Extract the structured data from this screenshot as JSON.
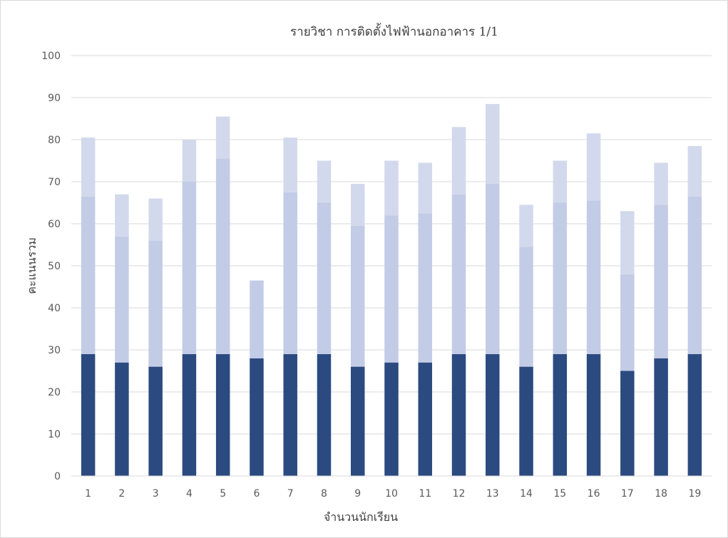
{
  "chart_data": {
    "type": "bar",
    "stacked": true,
    "title": "รายวิชา การติดตั้งไฟฟ้านอกอาคาร 1/1",
    "xlabel": "จำนวนนักเรียน",
    "ylabel": "คะแนนรวม",
    "ylim": [
      0,
      100
    ],
    "yticks": [
      0,
      10,
      20,
      30,
      40,
      50,
      60,
      70,
      80,
      90,
      100
    ],
    "grid": true,
    "legend": "none",
    "categories": [
      "1",
      "2",
      "3",
      "4",
      "5",
      "6",
      "7",
      "8",
      "9",
      "10",
      "11",
      "12",
      "13",
      "14",
      "15",
      "16",
      "17",
      "18",
      "19"
    ],
    "series": [
      {
        "color": "#2b4a80",
        "values": [
          29,
          27,
          26,
          29,
          29,
          28,
          29,
          29,
          26,
          27,
          27,
          29,
          29,
          26,
          29,
          29,
          25,
          28,
          29
        ]
      },
      {
        "color": "#c3cce6",
        "values": [
          37.5,
          30,
          30,
          41,
          46.5,
          18.5,
          38.5,
          36,
          33.5,
          35,
          35.5,
          38,
          40.5,
          28.5,
          36,
          36.5,
          23,
          36.5,
          37.5
        ]
      },
      {
        "color": "#d3d9ec",
        "values": [
          14,
          10,
          10,
          10,
          10,
          0,
          13,
          10,
          10,
          13,
          12,
          16,
          19,
          10,
          10,
          16,
          15,
          10,
          12
        ]
      }
    ]
  }
}
